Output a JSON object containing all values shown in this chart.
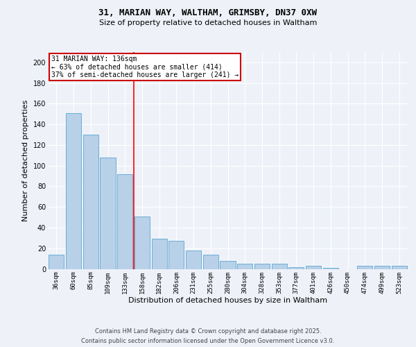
{
  "title1": "31, MARIAN WAY, WALTHAM, GRIMSBY, DN37 0XW",
  "title2": "Size of property relative to detached houses in Waltham",
  "xlabel": "Distribution of detached houses by size in Waltham",
  "ylabel": "Number of detached properties",
  "categories": [
    "36sqm",
    "60sqm",
    "85sqm",
    "109sqm",
    "133sqm",
    "158sqm",
    "182sqm",
    "206sqm",
    "231sqm",
    "255sqm",
    "280sqm",
    "304sqm",
    "328sqm",
    "353sqm",
    "377sqm",
    "401sqm",
    "426sqm",
    "450sqm",
    "474sqm",
    "499sqm",
    "523sqm"
  ],
  "values": [
    14,
    151,
    130,
    108,
    92,
    51,
    29,
    27,
    18,
    14,
    8,
    5,
    5,
    5,
    2,
    3,
    1,
    0,
    3,
    3,
    3
  ],
  "bar_color": "#b8d0e8",
  "bar_edge_color": "#6aaed6",
  "bar_width": 0.9,
  "red_line_x": 4.5,
  "annotation_line1": "31 MARIAN WAY: 136sqm",
  "annotation_line2": "← 63% of detached houses are smaller (414)",
  "annotation_line3": "37% of semi-detached houses are larger (241) →",
  "annotation_box_color": "#ffffff",
  "annotation_box_edge_color": "#cc0000",
  "ylim": [
    0,
    210
  ],
  "yticks": [
    0,
    20,
    40,
    60,
    80,
    100,
    120,
    140,
    160,
    180,
    200
  ],
  "footer1": "Contains HM Land Registry data © Crown copyright and database right 2025.",
  "footer2": "Contains public sector information licensed under the Open Government Licence v3.0.",
  "bg_color": "#eef2f8",
  "title_fontsize": 9,
  "subtitle_fontsize": 8,
  "xlabel_fontsize": 8,
  "ylabel_fontsize": 8,
  "tick_fontsize": 6.5,
  "footer_fontsize": 6,
  "annot_fontsize": 7
}
